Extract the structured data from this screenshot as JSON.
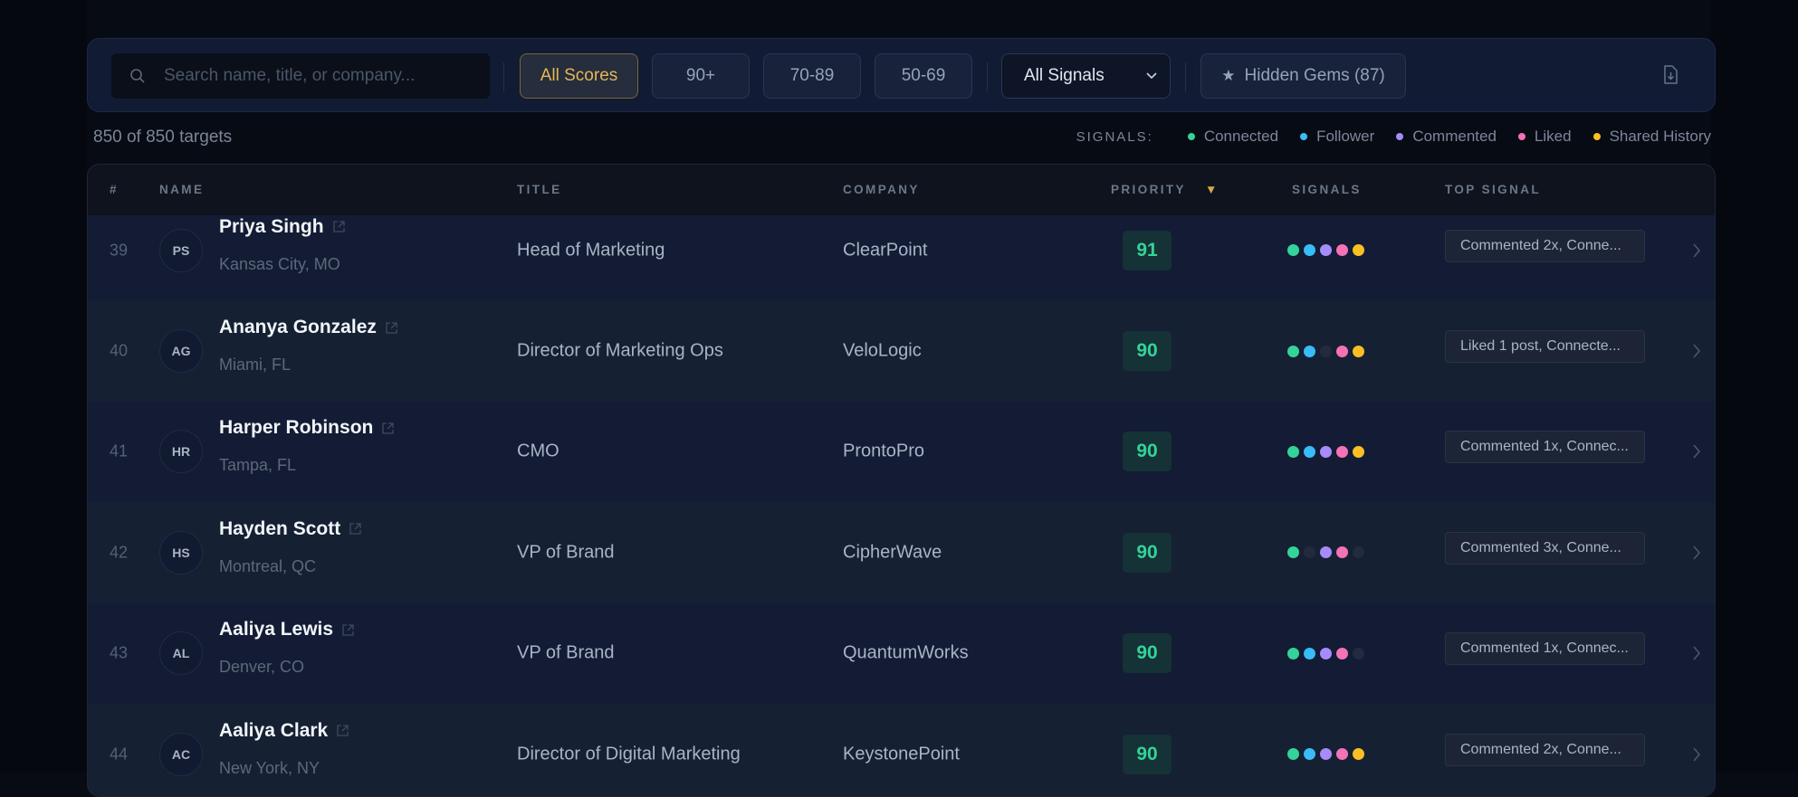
{
  "toolbar": {
    "search_placeholder": "Search name, title, or company...",
    "score_filters": [
      "All Scores",
      "90+",
      "70-89",
      "50-69"
    ],
    "active_score_filter": "All Scores",
    "signal_select": "All Signals",
    "hidden_gems": "Hidden Gems (87)"
  },
  "summary": {
    "count": "850 of 850 targets"
  },
  "legend": {
    "label": "SIGNALS:",
    "items": [
      {
        "label": "Connected",
        "color": "#34d399"
      },
      {
        "label": "Follower",
        "color": "#38bdf8"
      },
      {
        "label": "Commented",
        "color": "#a78bfa"
      },
      {
        "label": "Liked",
        "color": "#f472b6"
      },
      {
        "label": "Shared History",
        "color": "#fbbf24"
      }
    ],
    "off_color": "#222b3d"
  },
  "table": {
    "headers": {
      "num": "#",
      "name": "NAME",
      "title": "TITLE",
      "company": "COMPANY",
      "priority": "PRIORITY",
      "sort_indicator": "▼",
      "signals": "SIGNALS",
      "top_signal": "TOP SIGNAL"
    },
    "rows": [
      {
        "num": "39",
        "initials": "PS",
        "name": "Priya Singh",
        "location": "Kansas City, MO",
        "title": "Head of Marketing",
        "company": "ClearPoint",
        "priority": "91",
        "signals": [
          true,
          true,
          true,
          true,
          true
        ],
        "top_signal": "Commented 2x, Conne..."
      },
      {
        "num": "40",
        "initials": "AG",
        "name": "Ananya Gonzalez",
        "location": "Miami, FL",
        "title": "Director of Marketing Ops",
        "company": "VeloLogic",
        "priority": "90",
        "signals": [
          true,
          true,
          false,
          true,
          true
        ],
        "top_signal": "Liked 1 post, Connecte..."
      },
      {
        "num": "41",
        "initials": "HR",
        "name": "Harper Robinson",
        "location": "Tampa, FL",
        "title": "CMO",
        "company": "ProntoPro",
        "priority": "90",
        "signals": [
          true,
          true,
          true,
          true,
          true
        ],
        "top_signal": "Commented 1x, Connec..."
      },
      {
        "num": "42",
        "initials": "HS",
        "name": "Hayden Scott",
        "location": "Montreal, QC",
        "title": "VP of Brand",
        "company": "CipherWave",
        "priority": "90",
        "signals": [
          true,
          false,
          true,
          true,
          false
        ],
        "top_signal": "Commented 3x, Conne..."
      },
      {
        "num": "43",
        "initials": "AL",
        "name": "Aaliya Lewis",
        "location": "Denver, CO",
        "title": "VP of Brand",
        "company": "QuantumWorks",
        "priority": "90",
        "signals": [
          true,
          true,
          true,
          true,
          false
        ],
        "top_signal": "Commented 1x, Connec..."
      },
      {
        "num": "44",
        "initials": "AC",
        "name": "Aaliya Clark",
        "location": "New York, NY",
        "title": "Director of Digital Marketing",
        "company": "KeystonePoint",
        "priority": "90",
        "signals": [
          true,
          true,
          true,
          true,
          true
        ],
        "top_signal": "Commented 2x, Conne..."
      }
    ]
  }
}
